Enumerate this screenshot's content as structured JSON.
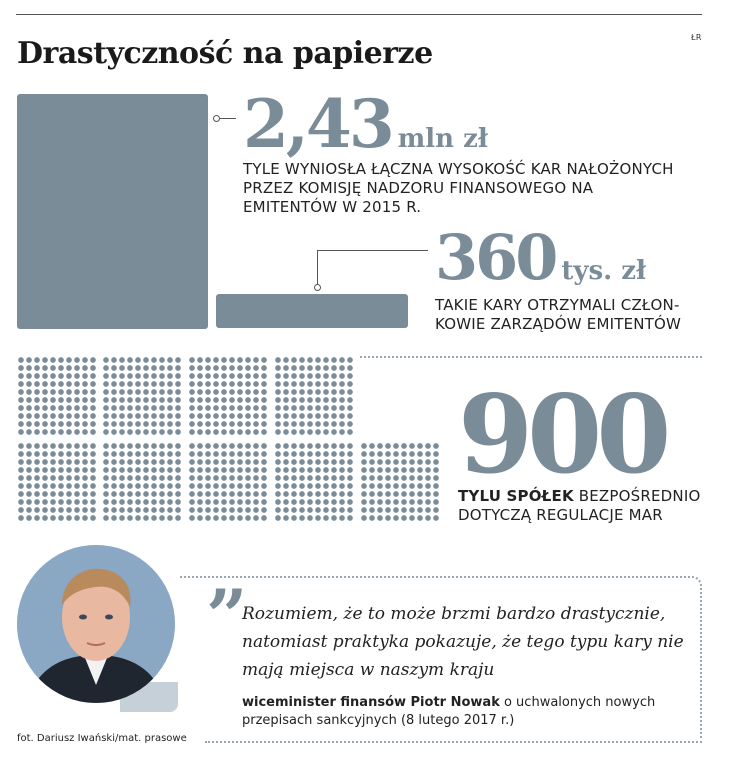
{
  "header": {
    "title": "Drastyczność na papierze",
    "author_tag": "ŁR"
  },
  "stat1": {
    "value": "2,43",
    "unit": "mln zł",
    "caption_lines": [
      "TYLE WYNIOSŁA ŁĄCZNA WYSOKOŚĆ KAR NAŁOŻONYCH",
      "PRZEZ KOMISJĘ NADZORU FINANSOWEGO NA",
      "EMITENTÓW W 2015 R."
    ]
  },
  "stat2": {
    "value": "360",
    "unit": "tys. zł",
    "caption_lines": [
      "TAKIE KARY OTRZYMALI CZŁON-",
      "KOWIE ZARZĄDÓW EMITENTÓW"
    ]
  },
  "stat3": {
    "value": "900",
    "caption_bold": "TYLU SPÓŁEK",
    "caption_rest": " BEZPOŚREDNIO",
    "caption_line2": "DOTYCZĄ REGULACJE MAR",
    "count": 900
  },
  "quote": {
    "mark": "”",
    "text": "Rozumiem, że to może brzmi bardzo drastycznie, natomiast praktyka pokazuje, że tego typu kary nie mają miejsca w naszym kraju",
    "source_bold": "wiceminister finansów Piotr Nowak",
    "source_rest": " o uchwalonych nowych przepisach sankcyjnych (8 lutego 2017 r.)"
  },
  "photo_credit": "fot. Dariusz Iwański/mat. prasowe",
  "colors": {
    "accent": "#7b8c99",
    "text": "#1a1a1a",
    "dotted": "#9aa6b0"
  }
}
